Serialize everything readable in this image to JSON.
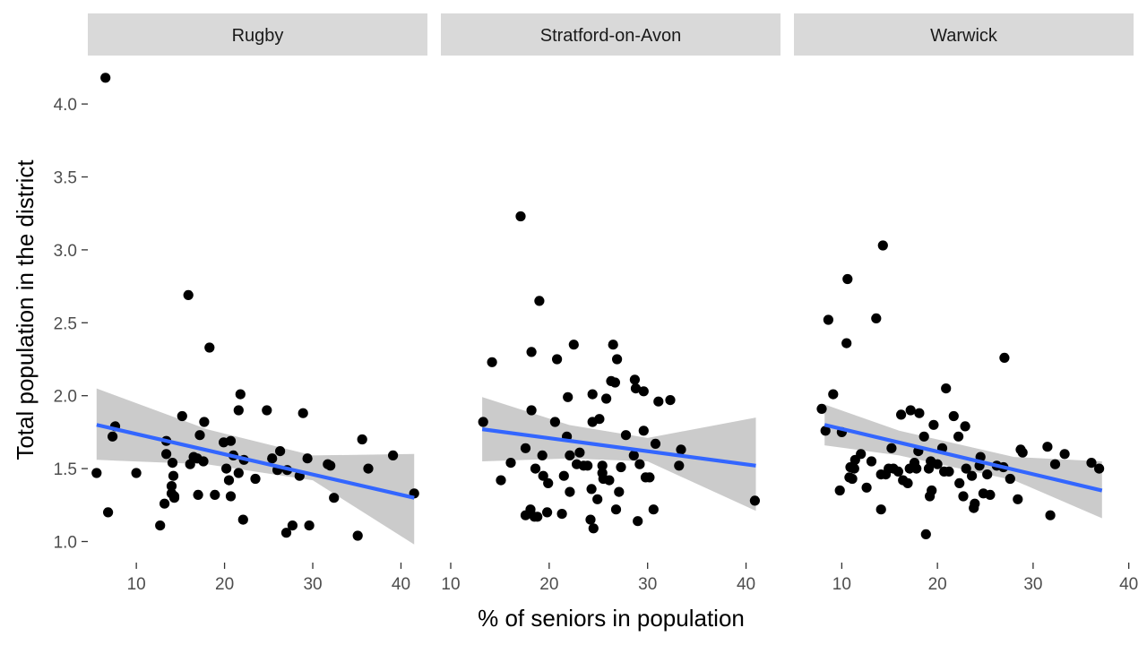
{
  "chart_data": {
    "type": "scatter",
    "xlabel": "% of seniors in population",
    "ylabel": "Total population in the district",
    "ylim": [
      0.9,
      4.3
    ],
    "y_ticks": [
      1.0,
      1.5,
      2.0,
      2.5,
      3.0,
      3.5,
      4.0
    ],
    "y_tick_labels": [
      "1.0",
      "1.5",
      "2.0",
      "2.5",
      "3.0",
      "3.5",
      "4.0"
    ],
    "grid": false,
    "smooth": "linear fit with grey confidence band",
    "colors": {
      "points": "#000000",
      "fit": "#3366FF",
      "band": "#C8C8C8",
      "strip": "#D9D9D9"
    },
    "facets": [
      {
        "title": "Rugby",
        "xlim": [
          4.5,
          43
        ],
        "x_ticks": [
          10,
          20,
          30,
          40
        ],
        "x_tick_labels": [
          "10",
          "20",
          "30",
          "40"
        ],
        "fit": {
          "x0": 5.5,
          "y0": 1.8,
          "x1": 41.5,
          "y1": 1.3
        },
        "band": {
          "x": [
            5.5,
            18,
            30,
            41.5
          ],
          "lower": [
            1.56,
            1.53,
            1.42,
            0.98
          ],
          "upper": [
            2.05,
            1.77,
            1.59,
            1.6
          ]
        },
        "points": [
          [
            5.5,
            1.47
          ],
          [
            6.5,
            4.18
          ],
          [
            6.8,
            1.2
          ],
          [
            7.3,
            1.72
          ],
          [
            7.6,
            1.79
          ],
          [
            10.0,
            1.47
          ],
          [
            12.7,
            1.11
          ],
          [
            13.2,
            1.26
          ],
          [
            13.4,
            1.69
          ],
          [
            13.4,
            1.6
          ],
          [
            14.0,
            1.38
          ],
          [
            14.0,
            1.33
          ],
          [
            14.1,
            1.54
          ],
          [
            14.2,
            1.45
          ],
          [
            14.3,
            1.3
          ],
          [
            14.3,
            1.31
          ],
          [
            15.2,
            1.86
          ],
          [
            15.9,
            2.69
          ],
          [
            16.1,
            1.53
          ],
          [
            16.5,
            1.58
          ],
          [
            16.9,
            1.57
          ],
          [
            17.0,
            1.32
          ],
          [
            17.2,
            1.73
          ],
          [
            17.6,
            1.55
          ],
          [
            17.7,
            1.82
          ],
          [
            18.3,
            2.33
          ],
          [
            18.9,
            1.32
          ],
          [
            19.9,
            1.68
          ],
          [
            20.2,
            1.5
          ],
          [
            20.5,
            1.42
          ],
          [
            20.7,
            1.69
          ],
          [
            20.7,
            1.31
          ],
          [
            21.0,
            1.59
          ],
          [
            21.6,
            1.47
          ],
          [
            21.6,
            1.9
          ],
          [
            21.8,
            2.01
          ],
          [
            22.1,
            1.15
          ],
          [
            22.2,
            1.56
          ],
          [
            23.5,
            1.43
          ],
          [
            24.8,
            1.9
          ],
          [
            25.4,
            1.57
          ],
          [
            26.0,
            1.49
          ],
          [
            26.3,
            1.62
          ],
          [
            27.0,
            1.06
          ],
          [
            27.1,
            1.49
          ],
          [
            27.7,
            1.11
          ],
          [
            28.5,
            1.45
          ],
          [
            28.9,
            1.88
          ],
          [
            29.4,
            1.57
          ],
          [
            29.6,
            1.11
          ],
          [
            31.7,
            1.53
          ],
          [
            32.0,
            1.52
          ],
          [
            32.4,
            1.3
          ],
          [
            35.1,
            1.04
          ],
          [
            35.6,
            1.7
          ],
          [
            36.3,
            1.5
          ],
          [
            39.1,
            1.59
          ],
          [
            41.5,
            1.33
          ]
        ]
      },
      {
        "title": "Stratford-on-Avon",
        "xlim": [
          9,
          43.5
        ],
        "x_ticks": [
          10,
          20,
          30,
          40
        ],
        "x_tick_labels": [
          "10",
          "20",
          "30",
          "40"
        ],
        "fit": {
          "x0": 13.2,
          "y0": 1.77,
          "x1": 41.0,
          "y1": 1.52
        },
        "band": {
          "x": [
            13.2,
            22,
            30,
            41.0
          ],
          "lower": [
            1.55,
            1.57,
            1.55,
            1.21
          ],
          "upper": [
            1.99,
            1.8,
            1.71,
            1.85
          ]
        },
        "points": [
          [
            13.3,
            1.82
          ],
          [
            14.2,
            2.23
          ],
          [
            15.1,
            1.42
          ],
          [
            16.1,
            1.54
          ],
          [
            17.1,
            3.23
          ],
          [
            17.6,
            1.64
          ],
          [
            17.6,
            1.18
          ],
          [
            18.1,
            1.22
          ],
          [
            18.2,
            1.9
          ],
          [
            18.2,
            2.3
          ],
          [
            18.5,
            1.17
          ],
          [
            18.6,
            1.5
          ],
          [
            18.8,
            1.17
          ],
          [
            19.0,
            2.65
          ],
          [
            19.3,
            1.59
          ],
          [
            19.4,
            1.45
          ],
          [
            19.8,
            1.2
          ],
          [
            19.9,
            1.4
          ],
          [
            20.6,
            1.82
          ],
          [
            20.8,
            2.25
          ],
          [
            21.3,
            1.19
          ],
          [
            21.5,
            1.45
          ],
          [
            21.8,
            1.72
          ],
          [
            21.9,
            1.99
          ],
          [
            22.1,
            1.59
          ],
          [
            22.1,
            1.34
          ],
          [
            22.5,
            2.35
          ],
          [
            22.8,
            1.53
          ],
          [
            23.1,
            1.61
          ],
          [
            23.5,
            1.52
          ],
          [
            23.9,
            1.52
          ],
          [
            24.2,
            1.15
          ],
          [
            24.3,
            1.36
          ],
          [
            24.4,
            1.82
          ],
          [
            24.4,
            2.01
          ],
          [
            24.5,
            1.09
          ],
          [
            24.9,
            1.29
          ],
          [
            25.1,
            1.84
          ],
          [
            25.4,
            1.47
          ],
          [
            25.4,
            1.52
          ],
          [
            25.5,
            1.43
          ],
          [
            25.8,
            1.98
          ],
          [
            26.1,
            1.42
          ],
          [
            26.3,
            2.1
          ],
          [
            26.5,
            2.35
          ],
          [
            26.7,
            2.09
          ],
          [
            26.8,
            1.22
          ],
          [
            26.9,
            2.25
          ],
          [
            27.1,
            1.34
          ],
          [
            27.3,
            1.51
          ],
          [
            27.8,
            1.73
          ],
          [
            28.6,
            1.59
          ],
          [
            28.7,
            2.11
          ],
          [
            28.8,
            2.05
          ],
          [
            29.0,
            1.14
          ],
          [
            29.2,
            1.53
          ],
          [
            29.6,
            2.03
          ],
          [
            29.6,
            1.76
          ],
          [
            29.8,
            1.44
          ],
          [
            30.2,
            1.44
          ],
          [
            30.6,
            1.22
          ],
          [
            30.8,
            1.67
          ],
          [
            31.1,
            1.96
          ],
          [
            32.3,
            1.97
          ],
          [
            33.2,
            1.52
          ],
          [
            33.4,
            1.63
          ],
          [
            40.9,
            1.28
          ]
        ]
      },
      {
        "title": "Warwick",
        "xlim": [
          5,
          40.5
        ],
        "x_ticks": [
          10,
          20,
          30,
          40
        ],
        "x_tick_labels": [
          "10",
          "20",
          "30",
          "40"
        ],
        "fit": {
          "x0": 8.2,
          "y0": 1.8,
          "x1": 37.2,
          "y1": 1.35
        },
        "band": {
          "x": [
            8.2,
            16,
            28,
            37.2
          ],
          "lower": [
            1.66,
            1.59,
            1.42,
            1.16
          ],
          "upper": [
            1.94,
            1.76,
            1.58,
            1.55
          ]
        },
        "points": [
          [
            7.9,
            1.91
          ],
          [
            8.3,
            1.76
          ],
          [
            8.6,
            2.52
          ],
          [
            9.1,
            2.01
          ],
          [
            9.8,
            1.35
          ],
          [
            10.0,
            1.75
          ],
          [
            10.5,
            2.36
          ],
          [
            10.6,
            2.8
          ],
          [
            10.8,
            1.44
          ],
          [
            10.9,
            1.51
          ],
          [
            11.1,
            1.43
          ],
          [
            11.3,
            1.5
          ],
          [
            11.4,
            1.56
          ],
          [
            12.0,
            1.6
          ],
          [
            12.6,
            1.37
          ],
          [
            13.1,
            1.55
          ],
          [
            13.6,
            2.53
          ],
          [
            14.1,
            1.22
          ],
          [
            14.1,
            1.46
          ],
          [
            14.3,
            3.03
          ],
          [
            14.6,
            1.46
          ],
          [
            14.9,
            1.5
          ],
          [
            15.2,
            1.64
          ],
          [
            15.4,
            1.5
          ],
          [
            15.9,
            1.48
          ],
          [
            16.2,
            1.87
          ],
          [
            16.4,
            1.42
          ],
          [
            16.9,
            1.4
          ],
          [
            17.1,
            1.5
          ],
          [
            17.2,
            1.9
          ],
          [
            17.6,
            1.54
          ],
          [
            17.8,
            1.5
          ],
          [
            18.0,
            1.62
          ],
          [
            18.1,
            1.88
          ],
          [
            18.6,
            1.72
          ],
          [
            18.8,
            1.05
          ],
          [
            19.1,
            1.5
          ],
          [
            19.2,
            1.31
          ],
          [
            19.3,
            1.55
          ],
          [
            19.4,
            1.35
          ],
          [
            19.6,
            1.8
          ],
          [
            20.0,
            1.53
          ],
          [
            20.5,
            1.64
          ],
          [
            20.7,
            1.48
          ],
          [
            20.9,
            2.05
          ],
          [
            21.2,
            1.48
          ],
          [
            21.7,
            1.86
          ],
          [
            22.2,
            1.72
          ],
          [
            22.3,
            1.4
          ],
          [
            22.7,
            1.31
          ],
          [
            22.9,
            1.79
          ],
          [
            23.0,
            1.5
          ],
          [
            23.6,
            1.45
          ],
          [
            23.8,
            1.23
          ],
          [
            23.9,
            1.26
          ],
          [
            24.4,
            1.52
          ],
          [
            24.5,
            1.58
          ],
          [
            24.8,
            1.33
          ],
          [
            25.2,
            1.46
          ],
          [
            25.5,
            1.32
          ],
          [
            26.2,
            1.52
          ],
          [
            26.9,
            1.51
          ],
          [
            27.0,
            2.26
          ],
          [
            27.6,
            1.43
          ],
          [
            28.4,
            1.29
          ],
          [
            28.7,
            1.63
          ],
          [
            28.9,
            1.61
          ],
          [
            31.5,
            1.65
          ],
          [
            31.8,
            1.18
          ],
          [
            32.3,
            1.53
          ],
          [
            33.3,
            1.6
          ],
          [
            36.1,
            1.54
          ],
          [
            36.9,
            1.5
          ]
        ]
      }
    ]
  }
}
